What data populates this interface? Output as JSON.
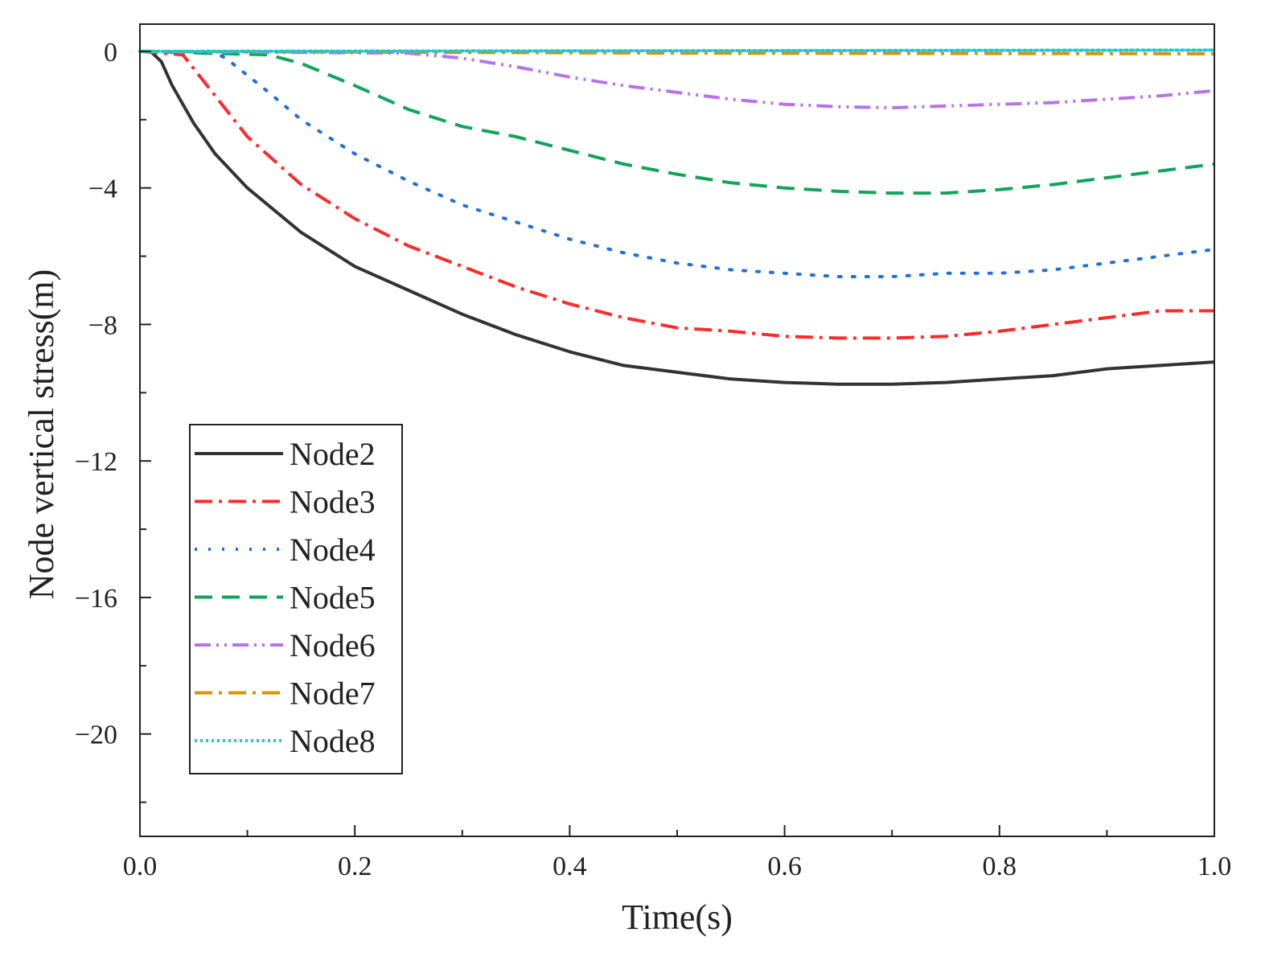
{
  "chart_data": {
    "type": "line",
    "title": "",
    "xlabel": "Time(s)",
    "ylabel": "Node vertical stress(m)",
    "xlim": [
      0,
      1
    ],
    "ylim": [
      -23,
      0.8
    ],
    "x_ticks": [
      0,
      0.2,
      0.4,
      0.6,
      0.8,
      1
    ],
    "x_tick_labels": [
      "0.0",
      "0.2",
      "0.4",
      "0.6",
      "0.8",
      "1.0"
    ],
    "x_minor_ticks": [
      0.1,
      0.3,
      0.5,
      0.7,
      0.9
    ],
    "y_ticks": [
      0,
      -4,
      -8,
      -12,
      -16,
      -20
    ],
    "y_tick_labels": [
      "0",
      "−4",
      "−8",
      "−12",
      "−16",
      "−20"
    ],
    "y_minor_ticks": [
      -2,
      -6,
      -10,
      -14,
      -18,
      -22
    ],
    "grid": false,
    "legend_position": "lower-left",
    "series": [
      {
        "name": "Node2",
        "color": "#333333",
        "dash": "solid",
        "x": [
          0,
          0.01,
          0.02,
          0.03,
          0.05,
          0.07,
          0.1,
          0.15,
          0.2,
          0.25,
          0.3,
          0.35,
          0.4,
          0.45,
          0.5,
          0.55,
          0.6,
          0.65,
          0.7,
          0.75,
          0.8,
          0.85,
          0.9,
          0.95,
          1.0
        ],
        "y": [
          0,
          0,
          -0.3,
          -1.0,
          -2.1,
          -3.0,
          -4.0,
          -5.3,
          -6.3,
          -7.0,
          -7.7,
          -8.3,
          -8.8,
          -9.2,
          -9.4,
          -9.6,
          -9.7,
          -9.75,
          -9.75,
          -9.7,
          -9.6,
          -9.5,
          -9.3,
          -9.2,
          -9.1
        ]
      },
      {
        "name": "Node3",
        "color": "#ff2b2b",
        "dash": "dashdot",
        "x": [
          0,
          0.04,
          0.05,
          0.07,
          0.1,
          0.15,
          0.2,
          0.25,
          0.3,
          0.35,
          0.4,
          0.45,
          0.5,
          0.55,
          0.6,
          0.65,
          0.7,
          0.75,
          0.8,
          0.85,
          0.9,
          0.95,
          1.0
        ],
        "y": [
          0,
          -0.1,
          -0.5,
          -1.3,
          -2.5,
          -3.9,
          -4.9,
          -5.7,
          -6.3,
          -6.9,
          -7.4,
          -7.8,
          -8.1,
          -8.2,
          -8.35,
          -8.4,
          -8.4,
          -8.35,
          -8.2,
          -8.0,
          -7.8,
          -7.6,
          -7.6
        ]
      },
      {
        "name": "Node4",
        "color": "#1f6fe0",
        "dash": "dot",
        "x": [
          0,
          0.07,
          0.08,
          0.1,
          0.12,
          0.15,
          0.2,
          0.25,
          0.3,
          0.35,
          0.4,
          0.45,
          0.5,
          0.55,
          0.6,
          0.65,
          0.7,
          0.75,
          0.8,
          0.85,
          0.9,
          0.95,
          1.0
        ],
        "y": [
          0,
          -0.05,
          -0.2,
          -0.7,
          -1.2,
          -2.0,
          -3.0,
          -3.8,
          -4.5,
          -5.0,
          -5.5,
          -5.9,
          -6.2,
          -6.4,
          -6.5,
          -6.6,
          -6.6,
          -6.5,
          -6.5,
          -6.4,
          -6.2,
          -6.0,
          -5.8
        ]
      },
      {
        "name": "Node5",
        "color": "#11a55a",
        "dash": "dash",
        "x": [
          0,
          0.12,
          0.15,
          0.2,
          0.25,
          0.3,
          0.35,
          0.4,
          0.45,
          0.5,
          0.55,
          0.6,
          0.65,
          0.7,
          0.75,
          0.8,
          0.85,
          0.9,
          0.95,
          1.0
        ],
        "y": [
          0,
          -0.1,
          -0.35,
          -1.0,
          -1.7,
          -2.2,
          -2.5,
          -2.9,
          -3.3,
          -3.6,
          -3.85,
          -4.0,
          -4.1,
          -4.15,
          -4.15,
          -4.05,
          -3.9,
          -3.7,
          -3.5,
          -3.3
        ]
      },
      {
        "name": "Node6",
        "color": "#b873e8",
        "dash": "dashdotdot",
        "x": [
          0,
          0.25,
          0.3,
          0.35,
          0.4,
          0.45,
          0.5,
          0.55,
          0.6,
          0.65,
          0.7,
          0.75,
          0.8,
          0.85,
          0.9,
          0.95,
          1.0
        ],
        "y": [
          0,
          -0.05,
          -0.2,
          -0.45,
          -0.75,
          -1.0,
          -1.2,
          -1.4,
          -1.55,
          -1.62,
          -1.65,
          -1.6,
          -1.55,
          -1.5,
          -1.4,
          -1.3,
          -1.15
        ]
      },
      {
        "name": "Node7",
        "color": "#d4950a",
        "dash": "dashdot",
        "x": [
          0,
          0.5,
          1.0
        ],
        "y": [
          0,
          -0.05,
          -0.07
        ]
      },
      {
        "name": "Node8",
        "color": "#1ec8d2",
        "dash": "densedot",
        "x": [
          0,
          0.5,
          1.0
        ],
        "y": [
          0,
          0.02,
          0.04
        ]
      }
    ]
  }
}
